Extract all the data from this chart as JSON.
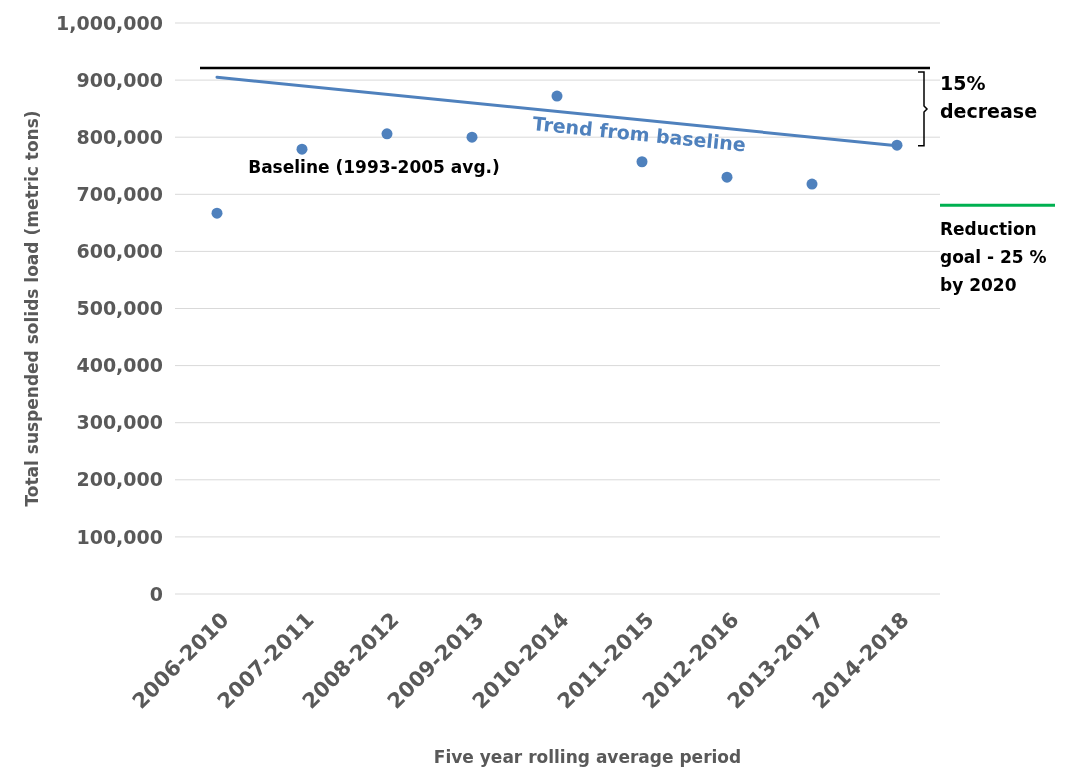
{
  "chart_data": {
    "type": "scatter",
    "xlabel": "Five year rolling average period",
    "ylabel": "Total suspended solids load (metric tons)",
    "categories": [
      "2006-2010",
      "2007-2011",
      "2008-2012",
      "2009-2013",
      "2010-2014",
      "2011-2015",
      "2012-2016",
      "2013-2017",
      "2014-2018"
    ],
    "series": [
      {
        "marker": "circle",
        "color": "#4f81bd",
        "values": [
          667000,
          779000,
          806000,
          800000,
          872000,
          757000,
          730000,
          718000,
          786000
        ]
      },
      {
        "type": "line",
        "marker": "none",
        "name": "Trend from baseline",
        "color": "#4f81bd",
        "x": [
          "2006-2010",
          "2014-2018"
        ],
        "values": [
          905000,
          785000
        ]
      }
    ],
    "ylim": [
      0,
      1000000
    ],
    "yticks": [
      {
        "value": 0,
        "label": "0"
      },
      {
        "value": 100000,
        "label": "100,000"
      },
      {
        "value": 200000,
        "label": "200,000"
      },
      {
        "value": 300000,
        "label": "300,000"
      },
      {
        "value": 400000,
        "label": "400,000"
      },
      {
        "value": 500000,
        "label": "500,000"
      },
      {
        "value": 600000,
        "label": "600,000"
      },
      {
        "value": 700000,
        "label": "700,000"
      },
      {
        "value": 800000,
        "label": "800,000"
      },
      {
        "value": 900000,
        "label": "900,000"
      },
      {
        "value": 1000000,
        "label": "1,000,000"
      }
    ],
    "ref_lines": [
      {
        "axis": "y",
        "value": 921000,
        "label": "Baseline (1993-2005 avg.)",
        "color": "#000000"
      },
      {
        "axis": "y",
        "value": 681000,
        "label": "Reduction goal - 25 % by 2020",
        "color": "#00b050"
      }
    ],
    "annotations": [
      "15% decrease"
    ],
    "grid": "y"
  }
}
